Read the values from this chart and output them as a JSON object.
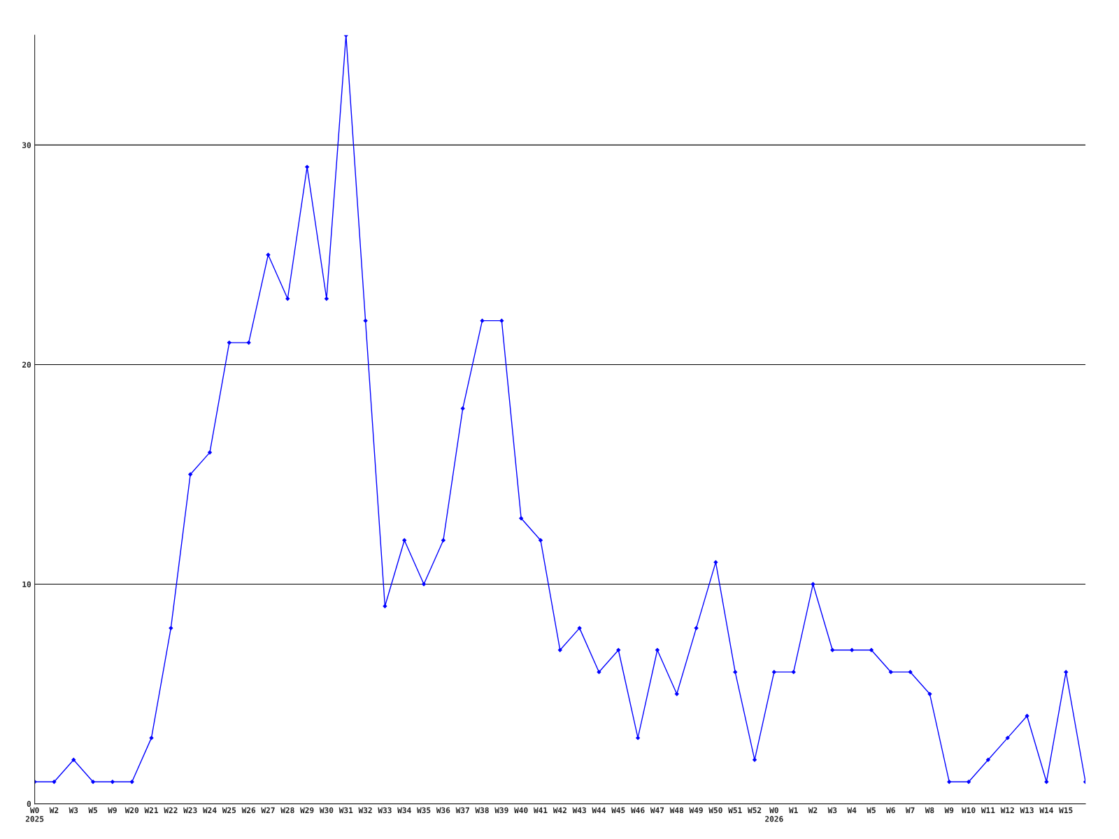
{
  "chart_data": {
    "type": "line",
    "categories": [
      "W0\n2025",
      "W2",
      "W3",
      "W5",
      "W9",
      "W20",
      "W21",
      "W22",
      "W23",
      "W24",
      "W25",
      "W26",
      "W27",
      "W28",
      "W29",
      "W30",
      "W31",
      "W32",
      "W33",
      "W34",
      "W35",
      "W36",
      "W37",
      "W38",
      "W39",
      "W40",
      "W41",
      "W42",
      "W43",
      "W44",
      "W45",
      "W46",
      "W47",
      "W48",
      "W49",
      "W50",
      "W51",
      "W52",
      "W0\n2026",
      "W1",
      "W2",
      "W3",
      "W4",
      "W5",
      "W6",
      "W7",
      "W8",
      "W9",
      "W10",
      "W11",
      "W12",
      "W13",
      "W14",
      "W15",
      null
    ],
    "series": [
      {
        "color": "#0000ff",
        "values": [
          1,
          1,
          2,
          1,
          1,
          1,
          3,
          8,
          15,
          16,
          21,
          21,
          25,
          23,
          29,
          23,
          35,
          22,
          9,
          12,
          10,
          12,
          18,
          22,
          22,
          13,
          12,
          7,
          8,
          6,
          7,
          3,
          7,
          5,
          8,
          11,
          6,
          2,
          6,
          6,
          10,
          7,
          7,
          7,
          6,
          6,
          5,
          1,
          1,
          2,
          3,
          4,
          1,
          6,
          1
        ]
      }
    ],
    "ylim": [
      0,
      35
    ],
    "yticks": [
      0,
      10,
      20,
      30
    ],
    "grid": "y",
    "marker": "diamond",
    "line_style": "solid",
    "legend": false
  }
}
